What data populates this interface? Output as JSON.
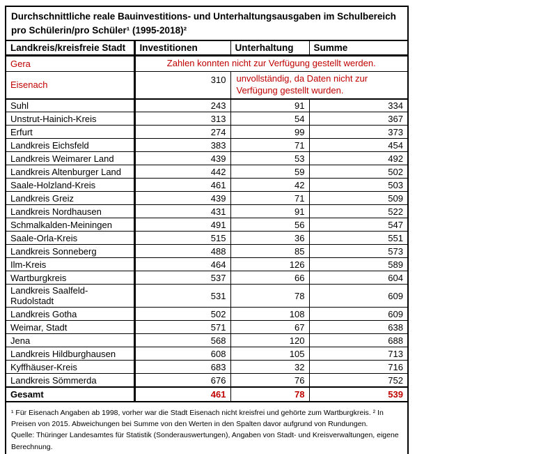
{
  "title": "Durchschnittliche reale Bauinvestitions- und Unterhaltungsausgaben im Schulbereich pro Schülerin/pro Schüler¹ (1995-2018)²",
  "table": {
    "columns": [
      "Landkreis/kreisfreie Stadt",
      "Investitionen",
      "Unterhaltung",
      "Summe"
    ],
    "special_rows": {
      "gera": {
        "name": "Gera",
        "note": "Zahlen konnten nicht zur Verfügung gestellt werden."
      },
      "eisenach": {
        "name": "Eisenach",
        "investitionen": "310",
        "note": "unvollständig, da Daten nicht zur Verfügung gestellt wurden."
      }
    },
    "rows": [
      {
        "name": "Suhl",
        "investitionen": "243",
        "unterhaltung": "91",
        "summe": "334"
      },
      {
        "name": "Unstrut-Hainich-Kreis",
        "investitionen": "313",
        "unterhaltung": "54",
        "summe": "367"
      },
      {
        "name": "Erfurt",
        "investitionen": "274",
        "unterhaltung": "99",
        "summe": "373"
      },
      {
        "name": "Landkreis Eichsfeld",
        "investitionen": "383",
        "unterhaltung": "71",
        "summe": "454"
      },
      {
        "name": "Landkreis Weimarer Land",
        "investitionen": "439",
        "unterhaltung": "53",
        "summe": "492"
      },
      {
        "name": "Landkreis Altenburger Land",
        "investitionen": "442",
        "unterhaltung": "59",
        "summe": "502"
      },
      {
        "name": "Saale-Holzland-Kreis",
        "investitionen": "461",
        "unterhaltung": "42",
        "summe": "503"
      },
      {
        "name": "Landkreis Greiz",
        "investitionen": "439",
        "unterhaltung": "71",
        "summe": "509"
      },
      {
        "name": "Landkreis Nordhausen",
        "investitionen": "431",
        "unterhaltung": "91",
        "summe": "522"
      },
      {
        "name": "Schmalkalden-Meiningen",
        "investitionen": "491",
        "unterhaltung": "56",
        "summe": "547"
      },
      {
        "name": "Saale-Orla-Kreis",
        "investitionen": "515",
        "unterhaltung": "36",
        "summe": "551"
      },
      {
        "name": "Landkreis Sonneberg",
        "investitionen": "488",
        "unterhaltung": "85",
        "summe": "573"
      },
      {
        "name": "Ilm-Kreis",
        "investitionen": "464",
        "unterhaltung": "126",
        "summe": "589"
      },
      {
        "name": "Wartburgkreis",
        "investitionen": "537",
        "unterhaltung": "66",
        "summe": "604"
      },
      {
        "name": "Landkreis Saalfeld-Rudolstadt",
        "investitionen": "531",
        "unterhaltung": "78",
        "summe": "609"
      },
      {
        "name": "Landkreis Gotha",
        "investitionen": "502",
        "unterhaltung": "108",
        "summe": "609"
      },
      {
        "name": "Weimar, Stadt",
        "investitionen": "571",
        "unterhaltung": "67",
        "summe": "638"
      },
      {
        "name": "Jena",
        "investitionen": "568",
        "unterhaltung": "120",
        "summe": "688"
      },
      {
        "name": "Landkreis Hildburghausen",
        "investitionen": "608",
        "unterhaltung": "105",
        "summe": "713"
      },
      {
        "name": "Kyffhäuser-Kreis",
        "investitionen": "683",
        "unterhaltung": "32",
        "summe": "716"
      },
      {
        "name": "Landkreis Sömmerda",
        "investitionen": "676",
        "unterhaltung": "76",
        "summe": "752"
      }
    ],
    "total": {
      "name": "Gesamt",
      "investitionen": "461",
      "unterhaltung": "78",
      "summe": "539"
    }
  },
  "footnotes": {
    "line1": "¹ Für Eisenach Angaben ab 1998, vorher war die Stadt Eisenach nicht kreisfrei und gehörte zum Wartburgkreis. ² In Preisen von 2015. Abweichungen bei Summe von den Werten in den Spalten davor aufgrund von Rundungen.",
    "line2": "Quelle: Thüringer Landesamtes für Statistik (Sonderauswertungen), Angaben von Stadt- und Kreisverwaltungen, eigene Berechnung."
  },
  "colors": {
    "accent_red": "#C00000",
    "border": "#000000",
    "background": "#FFFFFF"
  }
}
